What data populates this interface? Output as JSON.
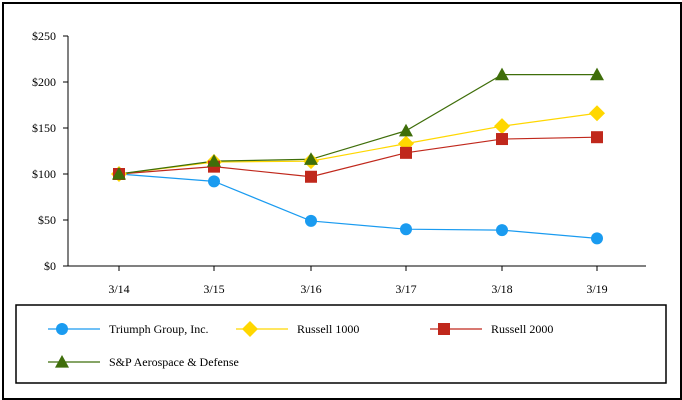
{
  "chart_data": {
    "type": "line",
    "title": "",
    "xlabel": "",
    "ylabel": "",
    "x": [
      "3/14",
      "3/15",
      "3/16",
      "3/17",
      "3/18",
      "3/19"
    ],
    "ylim": [
      0,
      250
    ],
    "yticks": [
      0,
      50,
      100,
      150,
      200,
      250
    ],
    "ytick_labels": [
      "$0",
      "$50",
      "$100",
      "$150",
      "$200",
      "$250"
    ],
    "grid": false,
    "legend_position": "bottom",
    "series": [
      {
        "name": "Triumph Group, Inc.",
        "values": [
          100,
          92,
          49,
          40,
          39,
          30
        ],
        "color": "#1a9bf0",
        "marker": "circle"
      },
      {
        "name": "Russell 1000",
        "values": [
          100,
          113,
          114,
          133,
          152,
          166
        ],
        "color": "#ffd700",
        "marker": "diamond"
      },
      {
        "name": "Russell 2000",
        "values": [
          100,
          108,
          97,
          123,
          138,
          140
        ],
        "color": "#c0281c",
        "marker": "square"
      },
      {
        "name": "S&P Aerospace & Defense",
        "values": [
          100,
          114,
          116,
          147,
          208,
          208
        ],
        "color": "#3f6e0a",
        "marker": "triangle"
      }
    ]
  }
}
